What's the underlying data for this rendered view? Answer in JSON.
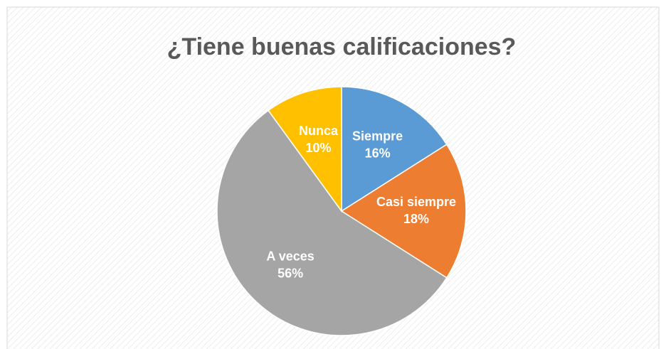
{
  "chart_data": {
    "type": "pie",
    "title": "¿Tiene buenas calificaciones?",
    "categories": [
      "Siempre",
      "Casi siempre",
      "A veces",
      "Nunca"
    ],
    "values": [
      16,
      18,
      56,
      10
    ],
    "value_labels": [
      "16%",
      "18%",
      "56%",
      "10%"
    ],
    "colors": [
      "#5b9bd5",
      "#ed7d31",
      "#a5a5a5",
      "#ffc000"
    ]
  }
}
